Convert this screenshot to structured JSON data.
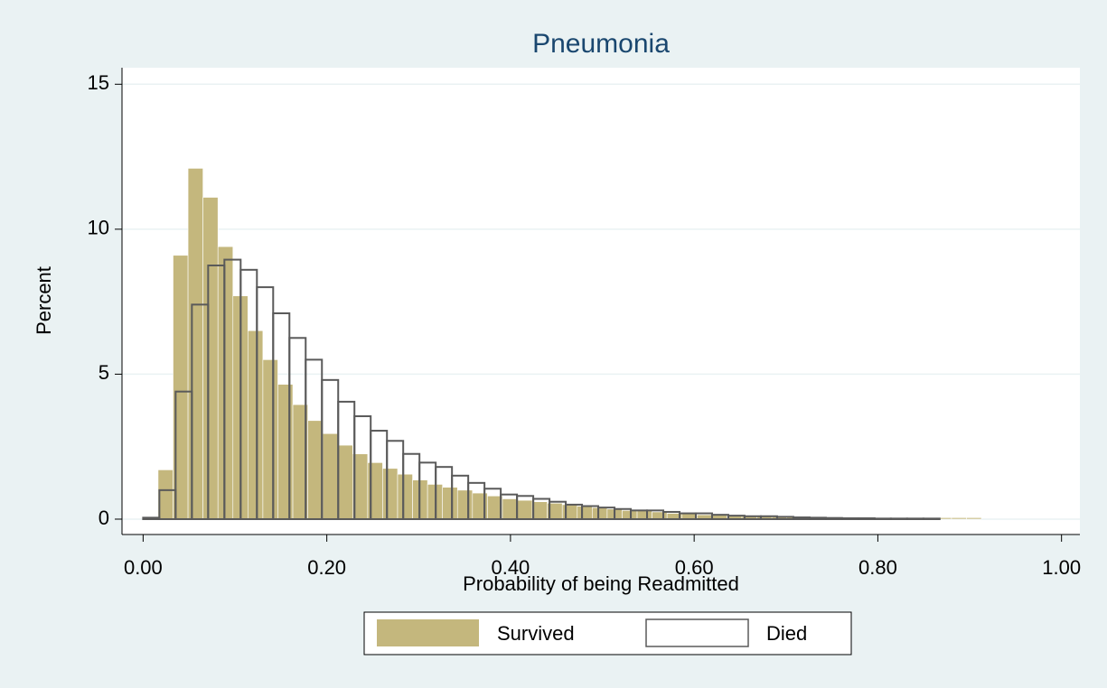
{
  "chart_data": {
    "type": "histogram",
    "title": "Pneumonia",
    "x_label": "Probability of being Readmitted",
    "y_label": "Percent",
    "xlim": [
      -0.023,
      1.02
    ],
    "ylim": [
      -0.53,
      15.57
    ],
    "xticks": [
      {
        "value": 0,
        "label": "0.00"
      },
      {
        "value": 0.2,
        "label": "0.20"
      },
      {
        "value": 0.4,
        "label": "0.40"
      },
      {
        "value": 0.6,
        "label": "0.60"
      },
      {
        "value": 0.8,
        "label": "0.80"
      },
      {
        "value": 1,
        "label": "1.00"
      }
    ],
    "yticks": [
      0,
      5,
      10,
      15
    ],
    "grid": true,
    "legend": "bottom",
    "series": [
      {
        "name": "Survived",
        "color": "#c4b77d",
        "fill": true,
        "bins": [
          0,
          0.0163,
          0.0326,
          0.0489,
          0.0652,
          0.0815,
          0.0978,
          0.1141,
          0.1304,
          0.1467,
          0.163,
          0.1793,
          0.1956,
          0.2119,
          0.2282,
          0.2445,
          0.2608,
          0.2771,
          0.2934,
          0.3097,
          0.326,
          0.3423,
          0.3586,
          0.3749,
          0.3912,
          0.4075,
          0.4238,
          0.4401,
          0.4564,
          0.4727,
          0.489,
          0.5053,
          0.5216,
          0.5379,
          0.5542,
          0.5705,
          0.5868,
          0.6031,
          0.6194,
          0.6357,
          0.652,
          0.6683,
          0.6846,
          0.7009,
          0.7172,
          0.7335,
          0.7498,
          0.7661,
          0.7824,
          0.7987,
          0.815,
          0.8313,
          0.8476,
          0.8639,
          0.8802,
          0.8965,
          0.9128
        ],
        "values": [
          0.05,
          1.7,
          9.1,
          12.1,
          11.1,
          9.4,
          7.7,
          6.5,
          5.5,
          4.65,
          3.95,
          3.4,
          2.95,
          2.55,
          2.25,
          1.95,
          1.75,
          1.55,
          1.35,
          1.2,
          1.1,
          1.0,
          0.9,
          0.8,
          0.7,
          0.65,
          0.6,
          0.55,
          0.5,
          0.45,
          0.4,
          0.35,
          0.3,
          0.3,
          0.25,
          0.2,
          0.2,
          0.15,
          0.15,
          0.12,
          0.1,
          0.1,
          0.08,
          0.07,
          0.06,
          0.05,
          0.05,
          0.04,
          0.04,
          0.03,
          0.03,
          0.03,
          0.02,
          0.05,
          0.05,
          0.05
        ]
      },
      {
        "name": "Died",
        "color": "#5a5a5a",
        "fill": false,
        "bins": [
          0,
          0.0177,
          0.0354,
          0.0531,
          0.0708,
          0.0885,
          0.1062,
          0.1239,
          0.1416,
          0.1593,
          0.177,
          0.1947,
          0.2124,
          0.2301,
          0.2478,
          0.2655,
          0.2832,
          0.3009,
          0.3186,
          0.3363,
          0.354,
          0.3717,
          0.3894,
          0.4071,
          0.4248,
          0.4425,
          0.4602,
          0.4779,
          0.4956,
          0.5133,
          0.531,
          0.5487,
          0.5664,
          0.5841,
          0.6018,
          0.6195,
          0.6372,
          0.6549,
          0.6726,
          0.6903,
          0.708,
          0.7257,
          0.7434,
          0.7611,
          0.7788,
          0.7965,
          0.8142,
          0.8319,
          0.8496,
          0.8673
        ],
        "values": [
          0.05,
          1.0,
          4.4,
          7.4,
          8.75,
          8.95,
          8.6,
          8.0,
          7.1,
          6.25,
          5.5,
          4.8,
          4.05,
          3.55,
          3.05,
          2.7,
          2.25,
          1.95,
          1.8,
          1.5,
          1.25,
          1.05,
          0.85,
          0.8,
          0.7,
          0.6,
          0.5,
          0.45,
          0.4,
          0.35,
          0.3,
          0.3,
          0.25,
          0.2,
          0.2,
          0.15,
          0.12,
          0.1,
          0.1,
          0.08,
          0.06,
          0.05,
          0.04,
          0.03,
          0.03,
          0.02,
          0.02,
          0.02,
          0.02
        ]
      }
    ]
  }
}
